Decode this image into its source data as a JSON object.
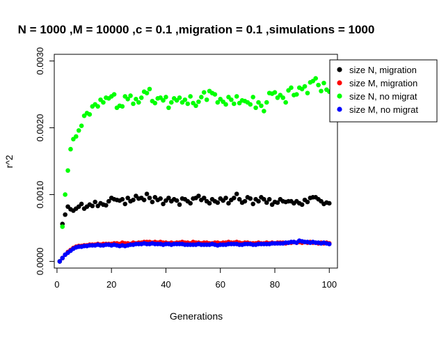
{
  "chart_data": {
    "type": "scatter",
    "title": "N = 1000 ,M = 10000 ,c = 0.1 ,migration = 0.1 ,simulations = 1000",
    "xlabel": "Generations",
    "ylabel": "r^2",
    "xlim": [
      -1,
      103
    ],
    "ylim": [
      -0.0001,
      0.0031
    ],
    "xticks": [
      0,
      20,
      40,
      60,
      80,
      100
    ],
    "yticks": [
      0.0,
      0.001,
      0.002,
      0.003
    ],
    "ytick_labels": [
      "0.0000",
      "0.0010",
      "0.0020",
      "0.0030"
    ],
    "legend_position": "top-right",
    "x": [
      1,
      2,
      3,
      4,
      5,
      6,
      7,
      8,
      9,
      10,
      11,
      12,
      13,
      14,
      15,
      16,
      17,
      18,
      19,
      20,
      21,
      22,
      23,
      24,
      25,
      26,
      27,
      28,
      29,
      30,
      31,
      32,
      33,
      34,
      35,
      36,
      37,
      38,
      39,
      40,
      41,
      42,
      43,
      44,
      45,
      46,
      47,
      48,
      49,
      50,
      51,
      52,
      53,
      54,
      55,
      56,
      57,
      58,
      59,
      60,
      61,
      62,
      63,
      64,
      65,
      66,
      67,
      68,
      69,
      70,
      71,
      72,
      73,
      74,
      75,
      76,
      77,
      78,
      79,
      80,
      81,
      82,
      83,
      84,
      85,
      86,
      87,
      88,
      89,
      90,
      91,
      92,
      93,
      94,
      95,
      96,
      97,
      98,
      99,
      100
    ],
    "series": [
      {
        "name": "size N, migration",
        "color": "#000000",
        "values": [
          0,
          0.00056,
          0.0007,
          0.00082,
          0.00078,
          0.00076,
          0.00079,
          0.00082,
          0.00086,
          0.00079,
          0.00082,
          0.00085,
          0.00083,
          0.00089,
          0.00083,
          0.00087,
          0.00085,
          0.00084,
          0.0009,
          0.00095,
          0.00093,
          0.00092,
          0.00091,
          0.00093,
          0.00086,
          0.00095,
          0.0009,
          0.00092,
          0.00098,
          0.00094,
          0.00095,
          0.00092,
          0.00101,
          0.00095,
          0.00089,
          0.00096,
          0.00092,
          0.00094,
          0.00086,
          0.00091,
          0.00095,
          0.0009,
          0.00093,
          0.00091,
          0.00085,
          0.00094,
          0.00093,
          0.0009,
          0.00087,
          0.00094,
          0.00095,
          0.00098,
          0.00092,
          0.00095,
          0.0009,
          0.00087,
          0.00093,
          0.0009,
          0.00088,
          0.00094,
          0.00091,
          0.00095,
          0.00087,
          0.00092,
          0.00095,
          0.00101,
          0.00093,
          0.00088,
          0.0009,
          0.00096,
          0.00094,
          0.00086,
          0.00093,
          0.0009,
          0.00096,
          0.00093,
          0.00088,
          0.00093,
          0.00085,
          0.00089,
          0.00088,
          0.00093,
          0.0009,
          0.00089,
          0.0009,
          0.0009,
          0.00087,
          0.0009,
          0.00087,
          0.00085,
          0.00092,
          0.00089,
          0.00095,
          0.00096,
          0.00096,
          0.00093,
          0.0009,
          0.00086,
          0.00088,
          0.00087
        ]
      },
      {
        "name": "size M, migration",
        "color": "#ff0000",
        "values": [
          0,
          5e-05,
          0.0001,
          0.00014,
          0.00017,
          0.0002,
          0.00022,
          0.00023,
          0.00023,
          0.00024,
          0.00024,
          0.00025,
          0.00025,
          0.00025,
          0.00026,
          0.00025,
          0.00026,
          0.00026,
          0.00026,
          0.00026,
          0.00027,
          0.00027,
          0.00026,
          0.00028,
          0.00027,
          0.00027,
          0.00026,
          0.00028,
          0.00027,
          0.00028,
          0.00028,
          0.00029,
          0.00029,
          0.00029,
          0.00028,
          0.00029,
          0.00028,
          0.00029,
          0.00028,
          0.00028,
          0.00027,
          0.00028,
          0.00027,
          0.00028,
          0.00028,
          0.00029,
          0.00028,
          0.00028,
          0.00027,
          0.00029,
          0.00028,
          0.00028,
          0.00027,
          0.00028,
          0.00028,
          0.00027,
          0.00027,
          0.00028,
          0.00028,
          0.00027,
          0.00028,
          0.00028,
          0.00029,
          0.00028,
          0.00028,
          0.00029,
          0.00028,
          0.00027,
          0.00028,
          0.00028,
          0.00027,
          0.00027,
          0.00027,
          0.00028,
          0.00027,
          0.00027,
          0.00028,
          0.00027,
          0.00028,
          0.00027,
          0.00028,
          0.00028,
          0.00028,
          0.00027,
          0.00028,
          0.00028,
          0.00029,
          0.00028,
          0.00029,
          0.00028,
          0.00029,
          0.00028,
          0.00029,
          0.00028,
          0.00028,
          0.00027,
          0.00028,
          0.00027,
          0.00028,
          0.00027
        ]
      },
      {
        "name": "size N, no migrat",
        "color": "#00ff00",
        "values": [
          0,
          0.00052,
          0.001,
          0.00136,
          0.00168,
          0.00183,
          0.00187,
          0.00196,
          0.00203,
          0.00218,
          0.00222,
          0.0022,
          0.00232,
          0.00235,
          0.00232,
          0.00242,
          0.00238,
          0.00245,
          0.00244,
          0.00247,
          0.0025,
          0.0023,
          0.00233,
          0.00232,
          0.00247,
          0.00243,
          0.00248,
          0.00236,
          0.00243,
          0.00238,
          0.00245,
          0.00254,
          0.00252,
          0.00258,
          0.0024,
          0.00237,
          0.00244,
          0.00245,
          0.00241,
          0.00246,
          0.0023,
          0.00238,
          0.00244,
          0.00241,
          0.00245,
          0.00238,
          0.00242,
          0.00236,
          0.00247,
          0.00237,
          0.00233,
          0.00239,
          0.00246,
          0.00253,
          0.00242,
          0.00255,
          0.00252,
          0.0025,
          0.00238,
          0.00243,
          0.00239,
          0.00235,
          0.00246,
          0.00242,
          0.00236,
          0.00247,
          0.00237,
          0.00241,
          0.0024,
          0.00238,
          0.00235,
          0.00246,
          0.0023,
          0.00238,
          0.00233,
          0.00225,
          0.00238,
          0.00252,
          0.00251,
          0.00253,
          0.00245,
          0.00249,
          0.00245,
          0.00238,
          0.00256,
          0.0026,
          0.00249,
          0.0025,
          0.0026,
          0.00258,
          0.00262,
          0.00252,
          0.00268,
          0.0027,
          0.00274,
          0.00264,
          0.00255,
          0.00267,
          0.00257,
          0.00254
        ]
      },
      {
        "name": "size M, no migrat",
        "color": "#0000ff",
        "values": [
          0,
          5e-05,
          0.0001,
          0.00013,
          0.00016,
          0.00019,
          0.00021,
          0.00022,
          0.00022,
          0.00023,
          0.00023,
          0.00024,
          0.00024,
          0.00024,
          0.00025,
          0.00024,
          0.00024,
          0.00025,
          0.00025,
          0.00024,
          0.00025,
          0.00024,
          0.00023,
          0.00024,
          0.00023,
          0.00024,
          0.00025,
          0.00025,
          0.00026,
          0.00026,
          0.00026,
          0.00027,
          0.00026,
          0.00026,
          0.00027,
          0.00026,
          0.00026,
          0.00026,
          0.00025,
          0.00026,
          0.00026,
          0.00025,
          0.00026,
          0.00026,
          0.00026,
          0.00026,
          0.00025,
          0.00025,
          0.00025,
          0.00025,
          0.00025,
          0.00026,
          0.00025,
          0.00025,
          0.00025,
          0.00025,
          0.00026,
          0.00025,
          0.00024,
          0.00025,
          0.00025,
          0.00025,
          0.00026,
          0.00026,
          0.00026,
          0.00026,
          0.00025,
          0.00025,
          0.00026,
          0.00026,
          0.00026,
          0.00025,
          0.00025,
          0.00026,
          0.00026,
          0.00026,
          0.00026,
          0.00026,
          0.00027,
          0.00027,
          0.00027,
          0.00027,
          0.00027,
          0.00028,
          0.00028,
          0.00029,
          0.00029,
          0.00028,
          0.00031,
          0.0003,
          0.00029,
          0.00029,
          0.00028,
          0.00029,
          0.00028,
          0.00028,
          0.00027,
          0.00028,
          0.00027,
          0.00026
        ]
      }
    ]
  }
}
